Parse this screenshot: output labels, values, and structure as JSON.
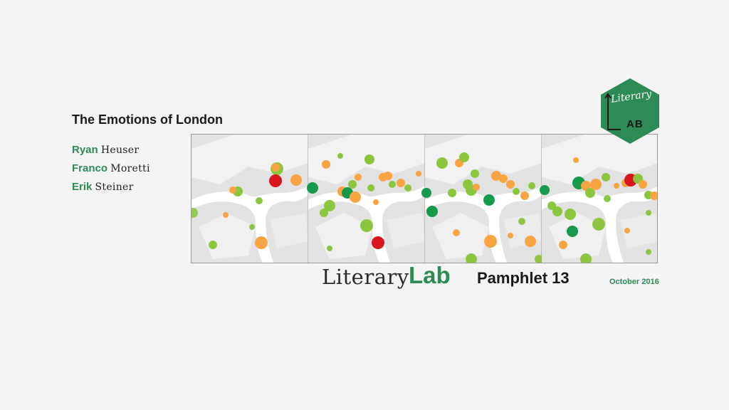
{
  "cover": {
    "title": "The Emotions of London",
    "authors": [
      {
        "first": "Ryan",
        "last": "Heuser"
      },
      {
        "first": "Franco",
        "last": "Moretti"
      },
      {
        "first": "Erik",
        "last": "Steiner"
      }
    ],
    "series_literary": "Literary",
    "series_lab": "Lab",
    "pamphlet": "Pamphlet 13",
    "date": "October 2016",
    "logo": {
      "top": "Literary",
      "bottom": "AB"
    }
  },
  "colors": {
    "brand_green": "#2e8b57",
    "fear_red": "#d9161c",
    "happy_green": "#149a4a",
    "light_green": "#8cc63f",
    "orange": "#f8a443"
  }
}
